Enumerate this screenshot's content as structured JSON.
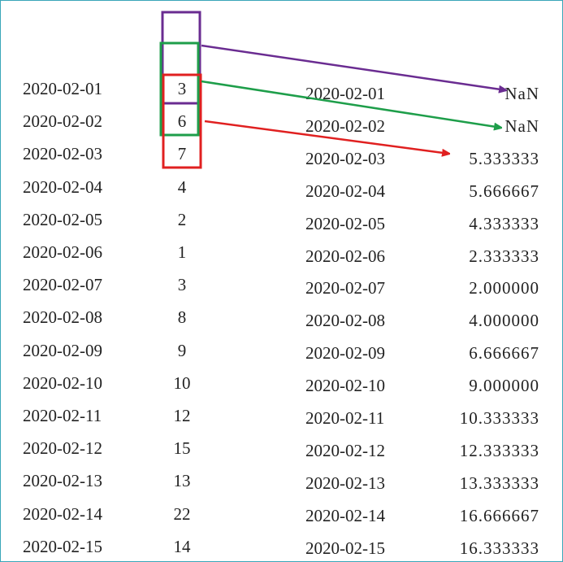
{
  "left_series": {
    "dates": [
      "2020-02-01",
      "2020-02-02",
      "2020-02-03",
      "2020-02-04",
      "2020-02-05",
      "2020-02-06",
      "2020-02-07",
      "2020-02-08",
      "2020-02-09",
      "2020-02-10",
      "2020-02-11",
      "2020-02-12",
      "2020-02-13",
      "2020-02-14",
      "2020-02-15"
    ],
    "values": [
      "3",
      "6",
      "7",
      "4",
      "2",
      "1",
      "3",
      "8",
      "9",
      "10",
      "12",
      "15",
      "13",
      "22",
      "14"
    ]
  },
  "right_series": {
    "dates": [
      "2020-02-01",
      "2020-02-02",
      "2020-02-03",
      "2020-02-04",
      "2020-02-05",
      "2020-02-06",
      "2020-02-07",
      "2020-02-08",
      "2020-02-09",
      "2020-02-10",
      "2020-02-11",
      "2020-02-12",
      "2020-02-13",
      "2020-02-14",
      "2020-02-15"
    ],
    "values": [
      "NaN",
      "NaN",
      "5.333333",
      "5.666667",
      "4.333333",
      "2.333333",
      "2.000000",
      "4.000000",
      "6.666667",
      "9.000000",
      "10.333333",
      "12.333333",
      "13.333333",
      "16.666667",
      "16.333333"
    ]
  },
  "window_colors": {
    "purple": "#6a2c91",
    "green": "#1e9e4a",
    "red": "#e02020"
  },
  "border_color": "#3aa6b9"
}
